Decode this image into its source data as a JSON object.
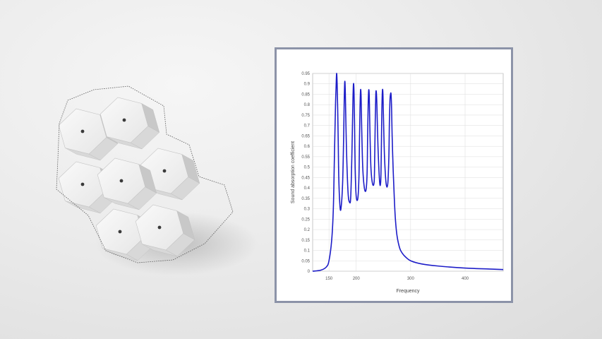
{
  "chart_data": {
    "type": "line",
    "title": "",
    "xlabel": "Frequency",
    "ylabel": "Sound absorption coefficient",
    "xlim": [
      120,
      470
    ],
    "ylim": [
      0,
      0.95
    ],
    "grid": true,
    "legend": "none",
    "x_ticks": [
      "150",
      "200",
      "300",
      "400"
    ],
    "x_tick_values": [
      150,
      200,
      300,
      400
    ],
    "y_ticks": [
      "0",
      "0.05",
      "0.1",
      "0.15",
      "0.2",
      "0.25",
      "0.3",
      "0.35",
      "0.4",
      "0.45",
      "0.5",
      "0.55",
      "0.6",
      "0.65",
      "0.7",
      "0.75",
      "0.8",
      "0.85",
      "0.9",
      "0.95"
    ],
    "y_tick_values": [
      0,
      0.05,
      0.1,
      0.15,
      0.2,
      0.25,
      0.3,
      0.35,
      0.4,
      0.45,
      0.5,
      0.55,
      0.6,
      0.65,
      0.7,
      0.75,
      0.8,
      0.85,
      0.9,
      0.95
    ],
    "series": [
      {
        "color": "#1d1dc8",
        "x": [
          120,
          135,
          145,
          150,
          155,
          158,
          160,
          162,
          163,
          164,
          165,
          166,
          167,
          168,
          170,
          172,
          175,
          177,
          178,
          179,
          180,
          182,
          185,
          188,
          190,
          192,
          194,
          195,
          196,
          197,
          198,
          200,
          203,
          205,
          206,
          207,
          208,
          209,
          210,
          212,
          215,
          218,
          220,
          221,
          222,
          223,
          224,
          225,
          227,
          230,
          233,
          234,
          235,
          236,
          237,
          238,
          240,
          243,
          245,
          246,
          247,
          248,
          249,
          250,
          252,
          255,
          258,
          260,
          261,
          262,
          263,
          264,
          265,
          266,
          268,
          270,
          272,
          275,
          280,
          285,
          290,
          300,
          320,
          350,
          400,
          450,
          470
        ],
        "y": [
          0,
          0.005,
          0.02,
          0.05,
          0.15,
          0.3,
          0.55,
          0.8,
          0.88,
          0.95,
          0.9,
          0.78,
          0.62,
          0.45,
          0.32,
          0.3,
          0.42,
          0.65,
          0.82,
          0.91,
          0.86,
          0.6,
          0.38,
          0.33,
          0.36,
          0.55,
          0.82,
          0.9,
          0.86,
          0.7,
          0.5,
          0.36,
          0.35,
          0.45,
          0.62,
          0.78,
          0.87,
          0.84,
          0.7,
          0.5,
          0.4,
          0.39,
          0.47,
          0.65,
          0.8,
          0.87,
          0.84,
          0.7,
          0.5,
          0.42,
          0.43,
          0.55,
          0.72,
          0.85,
          0.86,
          0.8,
          0.6,
          0.43,
          0.43,
          0.55,
          0.75,
          0.86,
          0.86,
          0.75,
          0.55,
          0.42,
          0.42,
          0.55,
          0.72,
          0.82,
          0.85,
          0.85,
          0.78,
          0.65,
          0.48,
          0.35,
          0.25,
          0.17,
          0.11,
          0.085,
          0.07,
          0.05,
          0.035,
          0.025,
          0.015,
          0.01,
          0.008
        ]
      }
    ]
  },
  "scene": {
    "background_colors": [
      "#f6f6f6",
      "#dcdcdc"
    ],
    "tile_face_color": "#f2f2f2",
    "tile_side_colors": [
      "#d8d8d8",
      "#c8c8c8"
    ],
    "frame_color": "#8c93a8"
  }
}
